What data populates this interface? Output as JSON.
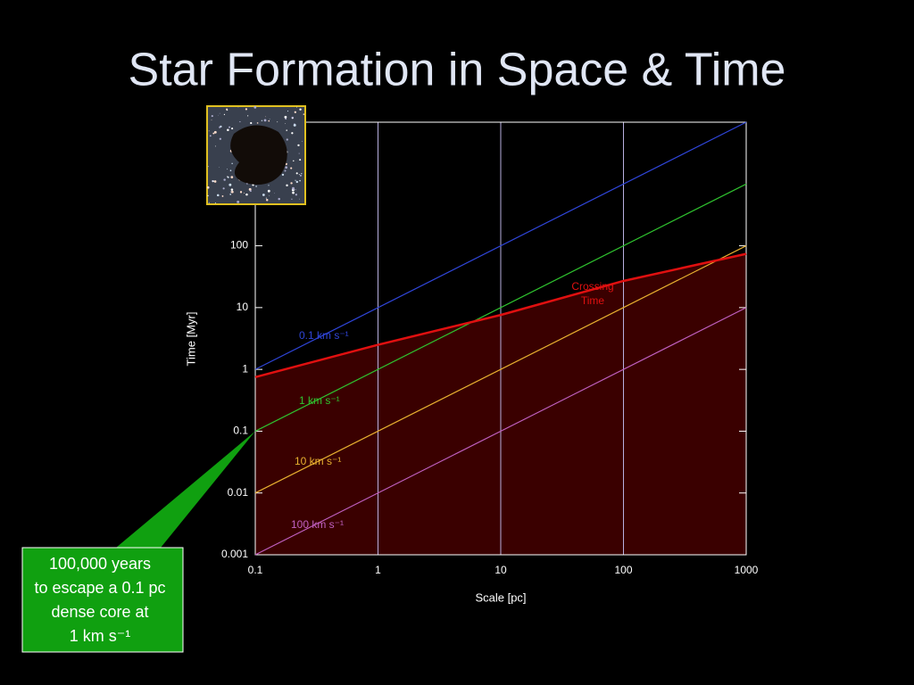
{
  "chart_data": {
    "type": "line",
    "title": "Star Formation in Space & Time",
    "x_label": "Scale [pc]",
    "y_label": "Time [Myr]",
    "log_x": true,
    "log_y": true,
    "grid": true,
    "xlim": [
      0.1,
      1000
    ],
    "ylim": [
      0.001,
      10000
    ],
    "xticks": [
      0.1,
      1,
      10,
      100,
      1000
    ],
    "yticks": [
      0.001,
      0.01,
      0.1,
      1,
      10,
      100
    ],
    "series": [
      {
        "name": "0.1 km s⁻¹",
        "color": "#2f45d8",
        "x": [
          0.1,
          1000
        ],
        "values": [
          1,
          10000
        ]
      },
      {
        "name": "1 km s⁻¹",
        "color": "#2fc22f",
        "x": [
          0.1,
          1000
        ],
        "values": [
          0.1,
          1000
        ]
      },
      {
        "name": "10 km s⁻¹",
        "color": "#e8b030",
        "x": [
          0.1,
          1000
        ],
        "values": [
          0.01,
          100
        ]
      },
      {
        "name": "100 km s⁻¹",
        "color": "#c060c0",
        "x": [
          0.1,
          1000
        ],
        "values": [
          0.001,
          10
        ]
      },
      {
        "name": "Crossing Time",
        "color": "#e01010",
        "fill": "#3a0000",
        "x": [
          0.1,
          1,
          10,
          100,
          1000
        ],
        "values": [
          0.75,
          2.5,
          7.6,
          27,
          74
        ]
      }
    ],
    "callout": {
      "lines": [
        "100,000 years",
        "to escape a 0.1 pc",
        "dense core at",
        "1 km s⁻¹"
      ],
      "color": "#10a010",
      "x": 0.1,
      "y": 0.1
    }
  }
}
